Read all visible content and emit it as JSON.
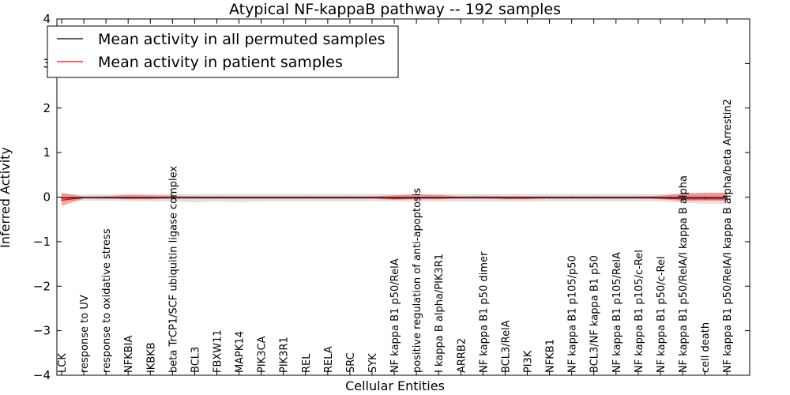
{
  "chart_data": {
    "type": "line",
    "title": "Atypical NF-kappaB pathway -- 192 samples",
    "xlabel": "Cellular Entities",
    "ylabel": "Inferred Activity",
    "ylim": [
      -4,
      4
    ],
    "yticks": [
      -4,
      -3,
      -2,
      -1,
      0,
      1,
      2,
      3,
      4
    ],
    "grid": false,
    "legend_position": "top-left",
    "categories": [
      "LCK",
      "response to UV",
      "response to oxidative stress",
      "NFKBIA",
      "IKBKB",
      "beta TrCP1/SCF ubiquitin ligase complex",
      "BCL3",
      "FBXW11",
      "MAPK14",
      "PIK3CA",
      "PIK3R1",
      "REL",
      "RELA",
      "SRC",
      "SYK",
      "NF kappa B1 p50/RelA",
      "positive regulation of anti-apoptosis",
      "I kappa B alpha/PIK3R1",
      "ARRB2",
      "NF kappa B1 p50 dimer",
      "BCL3/RelA",
      "PI3K",
      "NFKB1",
      "NF kappa B1 p105/p50",
      "BCL3/NF kappa B1 p50",
      "NF kappa B1 p105/RelA",
      "NF kappa B1 p105/c-Rel",
      "NF kappa B1 p50/c-Rel",
      "NF kappa B1 p50/RelA/I kappa B alpha",
      "cell death",
      "NF kappa B1 p50/RelA/I kappa B alpha/beta Arrestin2"
    ],
    "series": [
      {
        "name": "Mean activity in all permuted samples",
        "color": "#000000",
        "values": [
          -0.02,
          -0.01,
          -0.01,
          -0.01,
          -0.01,
          -0.01,
          -0.01,
          -0.01,
          -0.01,
          -0.01,
          -0.01,
          -0.01,
          -0.01,
          -0.01,
          -0.01,
          -0.01,
          -0.01,
          -0.01,
          -0.01,
          -0.01,
          -0.01,
          -0.01,
          -0.01,
          -0.01,
          -0.01,
          -0.01,
          -0.01,
          -0.01,
          -0.01,
          -0.01,
          -0.01
        ],
        "band_lower": [
          -0.08,
          -0.08,
          -0.08,
          -0.09,
          -0.1,
          -0.09,
          -0.12,
          -0.1,
          -0.11,
          -0.1,
          -0.09,
          -0.09,
          -0.09,
          -0.09,
          -0.09,
          -0.1,
          -0.1,
          -0.1,
          -0.1,
          -0.1,
          -0.1,
          -0.1,
          -0.09,
          -0.09,
          -0.09,
          -0.09,
          -0.09,
          -0.1,
          -0.12,
          -0.15,
          -0.15
        ],
        "band_upper": [
          0.06,
          0.06,
          0.06,
          0.07,
          0.07,
          0.07,
          0.07,
          0.07,
          0.07,
          0.07,
          0.07,
          0.07,
          0.07,
          0.07,
          0.07,
          0.07,
          0.07,
          0.07,
          0.07,
          0.07,
          0.07,
          0.07,
          0.07,
          0.07,
          0.07,
          0.07,
          0.07,
          0.07,
          0.08,
          0.08,
          0.08
        ]
      },
      {
        "name": "Mean activity in patient samples",
        "color": "#ff0000",
        "values": [
          -0.07,
          -0.01,
          -0.01,
          -0.02,
          -0.02,
          -0.01,
          -0.01,
          -0.01,
          -0.01,
          -0.01,
          -0.01,
          -0.01,
          -0.01,
          -0.01,
          -0.01,
          -0.03,
          -0.02,
          -0.02,
          -0.01,
          -0.01,
          -0.02,
          -0.02,
          -0.01,
          -0.01,
          -0.01,
          -0.01,
          -0.01,
          -0.02,
          -0.04,
          -0.04,
          -0.04
        ],
        "band_lower": [
          -0.2,
          -0.03,
          -0.04,
          -0.05,
          -0.05,
          -0.04,
          -0.04,
          -0.04,
          -0.04,
          -0.04,
          -0.04,
          -0.04,
          -0.04,
          -0.04,
          -0.04,
          -0.06,
          -0.05,
          -0.05,
          -0.04,
          -0.04,
          -0.05,
          -0.05,
          -0.04,
          -0.04,
          -0.04,
          -0.04,
          -0.04,
          -0.05,
          -0.08,
          -0.08,
          -0.08
        ],
        "band_upper": [
          0.1,
          0.01,
          0.02,
          0.05,
          0.04,
          0.03,
          0.02,
          0.02,
          0.02,
          0.02,
          0.02,
          0.02,
          0.02,
          0.02,
          0.02,
          0.04,
          0.06,
          0.05,
          0.02,
          0.03,
          0.02,
          0.02,
          0.02,
          0.02,
          0.02,
          0.02,
          0.02,
          0.03,
          0.08,
          0.1,
          0.1
        ]
      }
    ]
  }
}
